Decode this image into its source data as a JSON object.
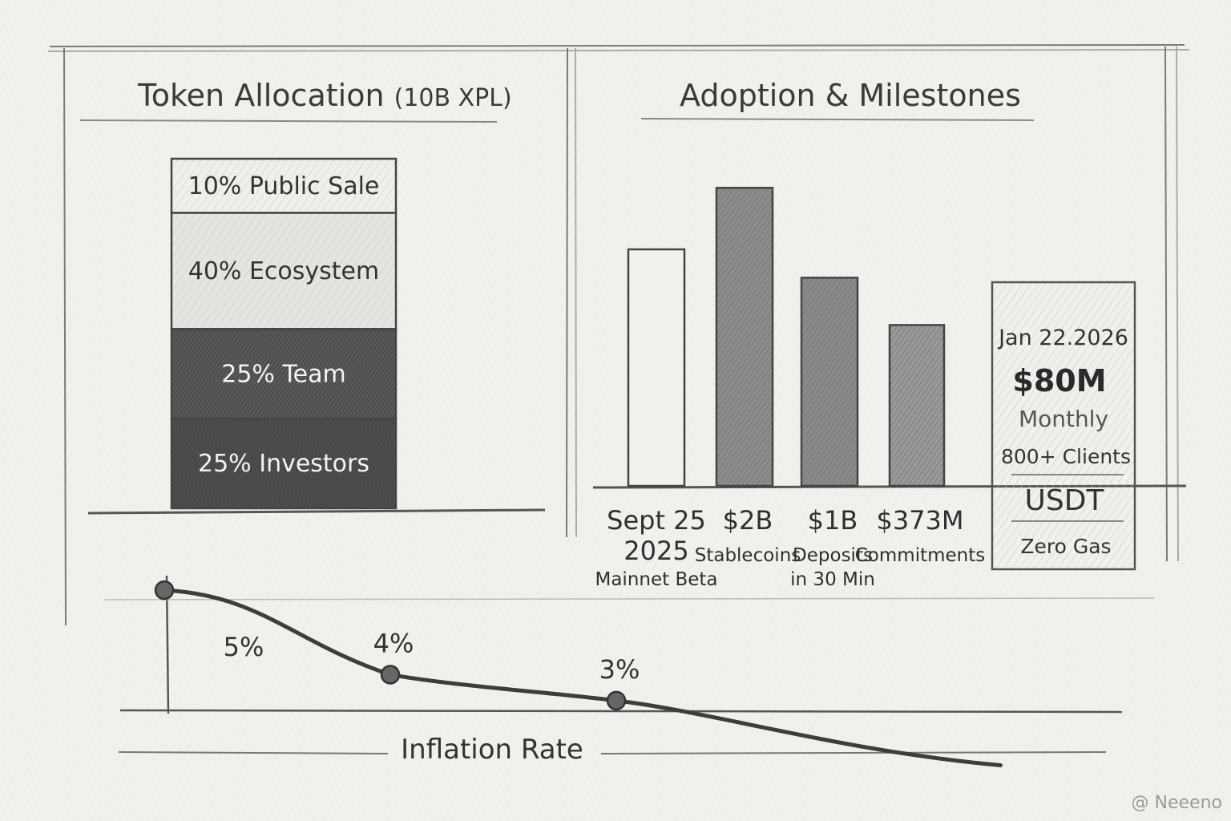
{
  "chart_data": [
    {
      "type": "bar",
      "title": "Token Allocation",
      "subtitle": "(10B XPL)",
      "stacked": true,
      "segments": [
        {
          "label": "10% Public Sale",
          "value": 10
        },
        {
          "label": "40% Ecosystem",
          "value": 40
        },
        {
          "label": "25% Team",
          "value": 25
        },
        {
          "label": "25% Investors",
          "value": 25
        }
      ]
    },
    {
      "type": "bar",
      "title": "Adoption & Milestones",
      "bars": [
        {
          "value_label": "Sept 25",
          "line2": "2025",
          "line3": "Mainnet Beta",
          "height": 2.5
        },
        {
          "value_label": "$2B",
          "line2": "Stablecoins",
          "line3": "",
          "height": 3.15
        },
        {
          "value_label": "$1B",
          "line2": "Deposits",
          "line3": "in 30 Min",
          "height": 2.2
        },
        {
          "value_label": "$373M",
          "line2": "Commitments",
          "line3": "",
          "height": 1.7
        }
      ],
      "highlight_card": {
        "date": "Jan 22.2026",
        "amount": "$80M",
        "period": "Monthly",
        "clients": "800+ Clients",
        "asset": "USDT",
        "feature": "Zero Gas"
      }
    },
    {
      "type": "line",
      "xlabel": "Inflation Rate",
      "points": [
        {
          "x": 0,
          "y": 5.7,
          "label": ""
        },
        {
          "x": 1,
          "y": 4.4,
          "label": "4%"
        },
        {
          "x": 2,
          "y": 4.0,
          "label": "3%"
        }
      ],
      "tail_to": {
        "x": 3.7,
        "y": 3.3
      },
      "side_label": "5%"
    }
  ],
  "watermark": "@ Neeeno",
  "colors": {
    "paper": "#f1f0ec",
    "ink": "#3a3a3a",
    "light_fill": "#ececea",
    "mid_fill": "#8c8c8c",
    "dark_fill": "#555555"
  }
}
